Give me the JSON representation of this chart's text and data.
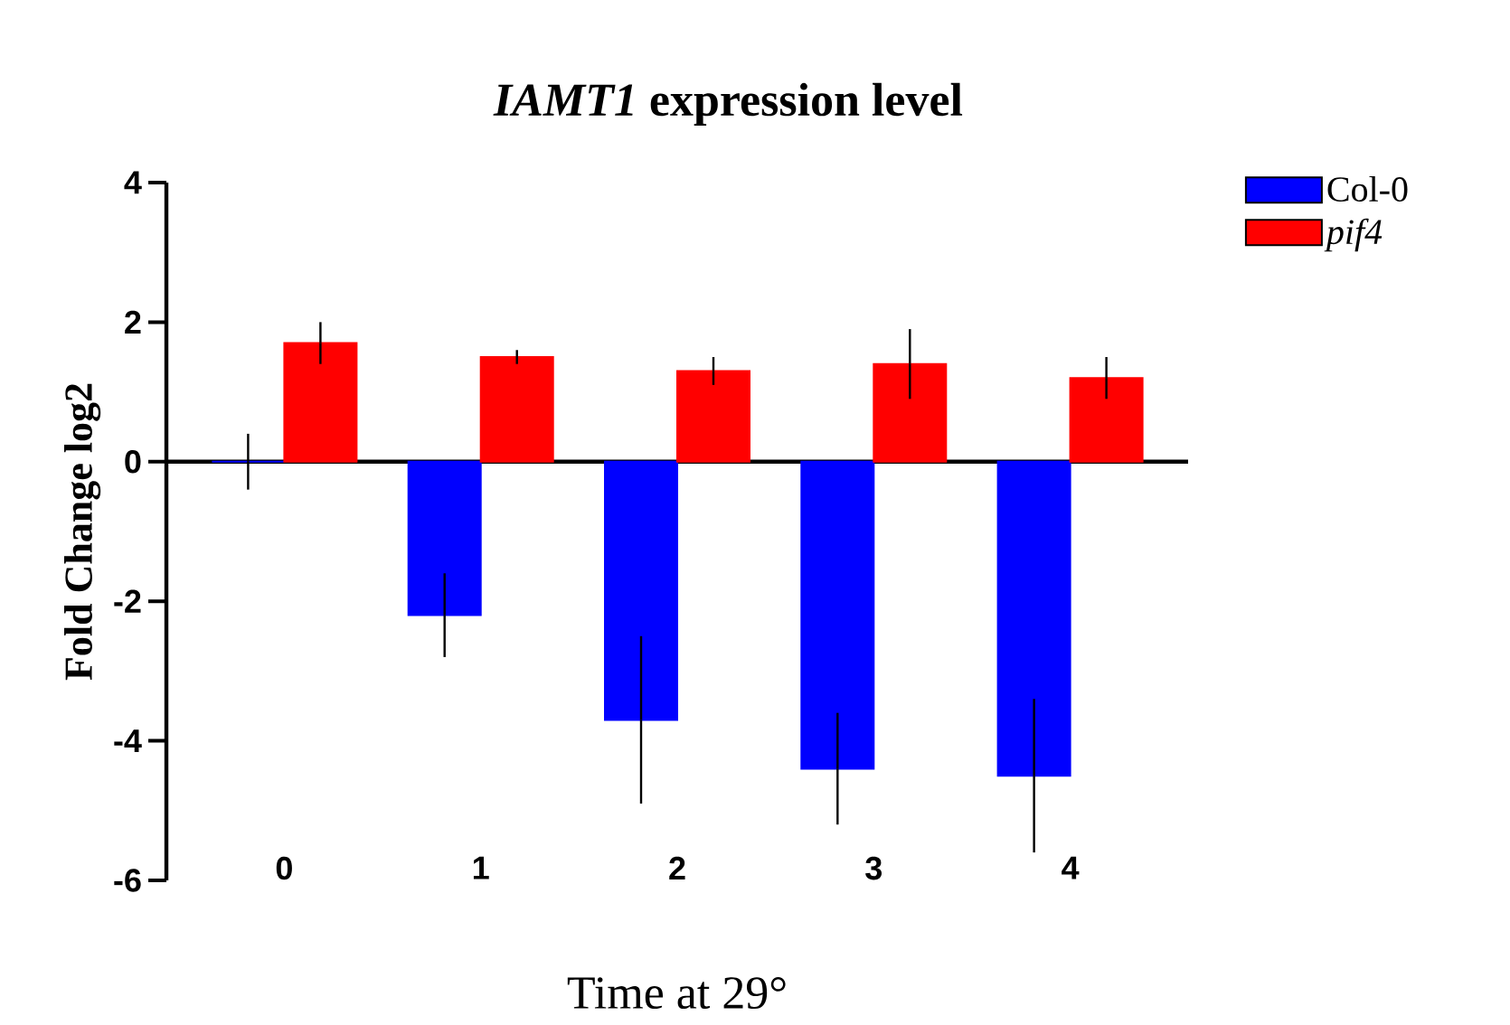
{
  "chart_data": {
    "type": "bar",
    "title": "*IAMT1* expression level",
    "xlabel": "Time at 29°",
    "ylabel": "Fold Change log2",
    "categories": [
      "0",
      "1",
      "2",
      "3",
      "4"
    ],
    "series": [
      {
        "name": "Col-0",
        "color": "#0000ff",
        "values": [
          0,
          -2.2,
          -3.7,
          -4.4,
          -4.5
        ],
        "errors": [
          0.4,
          0.6,
          1.2,
          0.8,
          1.1
        ]
      },
      {
        "name": "pif4",
        "color": "#ff0000",
        "values": [
          1.7,
          1.5,
          1.3,
          1.4,
          1.2
        ],
        "errors": [
          0.3,
          0.1,
          0.2,
          0.5,
          0.3
        ]
      }
    ],
    "ylim": [
      -6,
      4
    ],
    "yticks": [
      -6,
      -4,
      -2,
      0,
      2,
      4
    ],
    "legend": "top right"
  }
}
